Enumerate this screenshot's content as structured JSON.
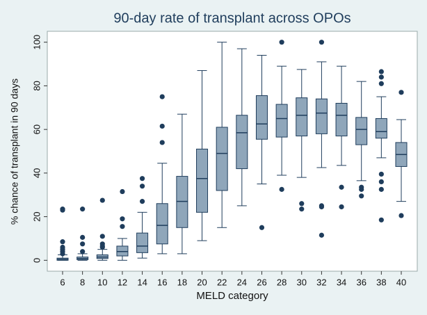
{
  "chart_data": {
    "type": "box",
    "title": "90-day rate of transplant across OPOs",
    "x_label": "MELD category",
    "y_label": "% chance of transplant in 90 days",
    "categories": [
      6,
      8,
      10,
      12,
      14,
      16,
      18,
      20,
      22,
      24,
      26,
      28,
      30,
      32,
      34,
      36,
      38,
      40
    ],
    "box_color": "#8fa6ba",
    "line_color": "#1f3d5c",
    "ylim": [
      -5,
      105
    ],
    "yticks": [
      0,
      20,
      40,
      60,
      80,
      100
    ],
    "grid": false,
    "boxes": [
      {
        "min": 0,
        "q1": 0,
        "median": 0.5,
        "q3": 1,
        "max": 2.5,
        "outliers": [
          23.5,
          23,
          8.5,
          6,
          5,
          4,
          3
        ]
      },
      {
        "min": 0,
        "q1": 0.3,
        "median": 0.8,
        "q3": 1.5,
        "max": 3,
        "outliers": [
          23.5,
          10.5,
          7.5,
          4
        ]
      },
      {
        "min": 0,
        "q1": 0.8,
        "median": 1.5,
        "q3": 2.5,
        "max": 5,
        "outliers": [
          27.5,
          11,
          7.5,
          6.5,
          6
        ]
      },
      {
        "min": 0,
        "q1": 2,
        "median": 4,
        "q3": 6.5,
        "max": 10,
        "outliers": [
          31.5,
          19,
          15.5
        ]
      },
      {
        "min": 1,
        "q1": 3.5,
        "median": 6.5,
        "q3": 12.5,
        "max": 22,
        "outliers": [
          37.5,
          34,
          27
        ]
      },
      {
        "min": 3,
        "q1": 7.5,
        "median": 16,
        "q3": 26,
        "max": 44.5,
        "outliers": [
          75,
          61.5,
          54
        ]
      },
      {
        "min": 3,
        "q1": 15,
        "median": 27,
        "q3": 38.5,
        "max": 67,
        "outliers": []
      },
      {
        "min": 9,
        "q1": 22,
        "median": 37.5,
        "q3": 51,
        "max": 87,
        "outliers": []
      },
      {
        "min": 15,
        "q1": 32,
        "median": 49,
        "q3": 61,
        "max": 100,
        "outliers": []
      },
      {
        "min": 25,
        "q1": 42,
        "median": 58.5,
        "q3": 66.5,
        "max": 97,
        "outliers": []
      },
      {
        "min": 35,
        "q1": 55.5,
        "median": 62.5,
        "q3": 75.5,
        "max": 94,
        "outliers": [
          15
        ]
      },
      {
        "min": 39,
        "q1": 56.5,
        "median": 65,
        "q3": 71.5,
        "max": 89,
        "outliers": [
          100,
          32.5
        ]
      },
      {
        "min": 38,
        "q1": 57,
        "median": 66.5,
        "q3": 74.5,
        "max": 87.5,
        "outliers": [
          26,
          23.5
        ]
      },
      {
        "min": 42.5,
        "q1": 58,
        "median": 67.5,
        "q3": 74,
        "max": 91,
        "outliers": [
          100,
          25,
          24.5,
          11.5
        ]
      },
      {
        "min": 43.5,
        "q1": 57,
        "median": 66.5,
        "q3": 72,
        "max": 89,
        "outliers": [
          33.5,
          24.5
        ]
      },
      {
        "min": 36.5,
        "q1": 53,
        "median": 60,
        "q3": 65.5,
        "max": 82,
        "outliers": [
          33.5,
          32.5,
          29.5
        ]
      },
      {
        "min": 47,
        "q1": 56,
        "median": 59,
        "q3": 65,
        "max": 75,
        "outliers": [
          86.5,
          84,
          81,
          39.5,
          36,
          32.5,
          18.5
        ]
      },
      {
        "min": 27,
        "q1": 43,
        "median": 48.5,
        "q3": 54,
        "max": 64.5,
        "outliers": [
          77,
          20.5
        ]
      }
    ]
  }
}
